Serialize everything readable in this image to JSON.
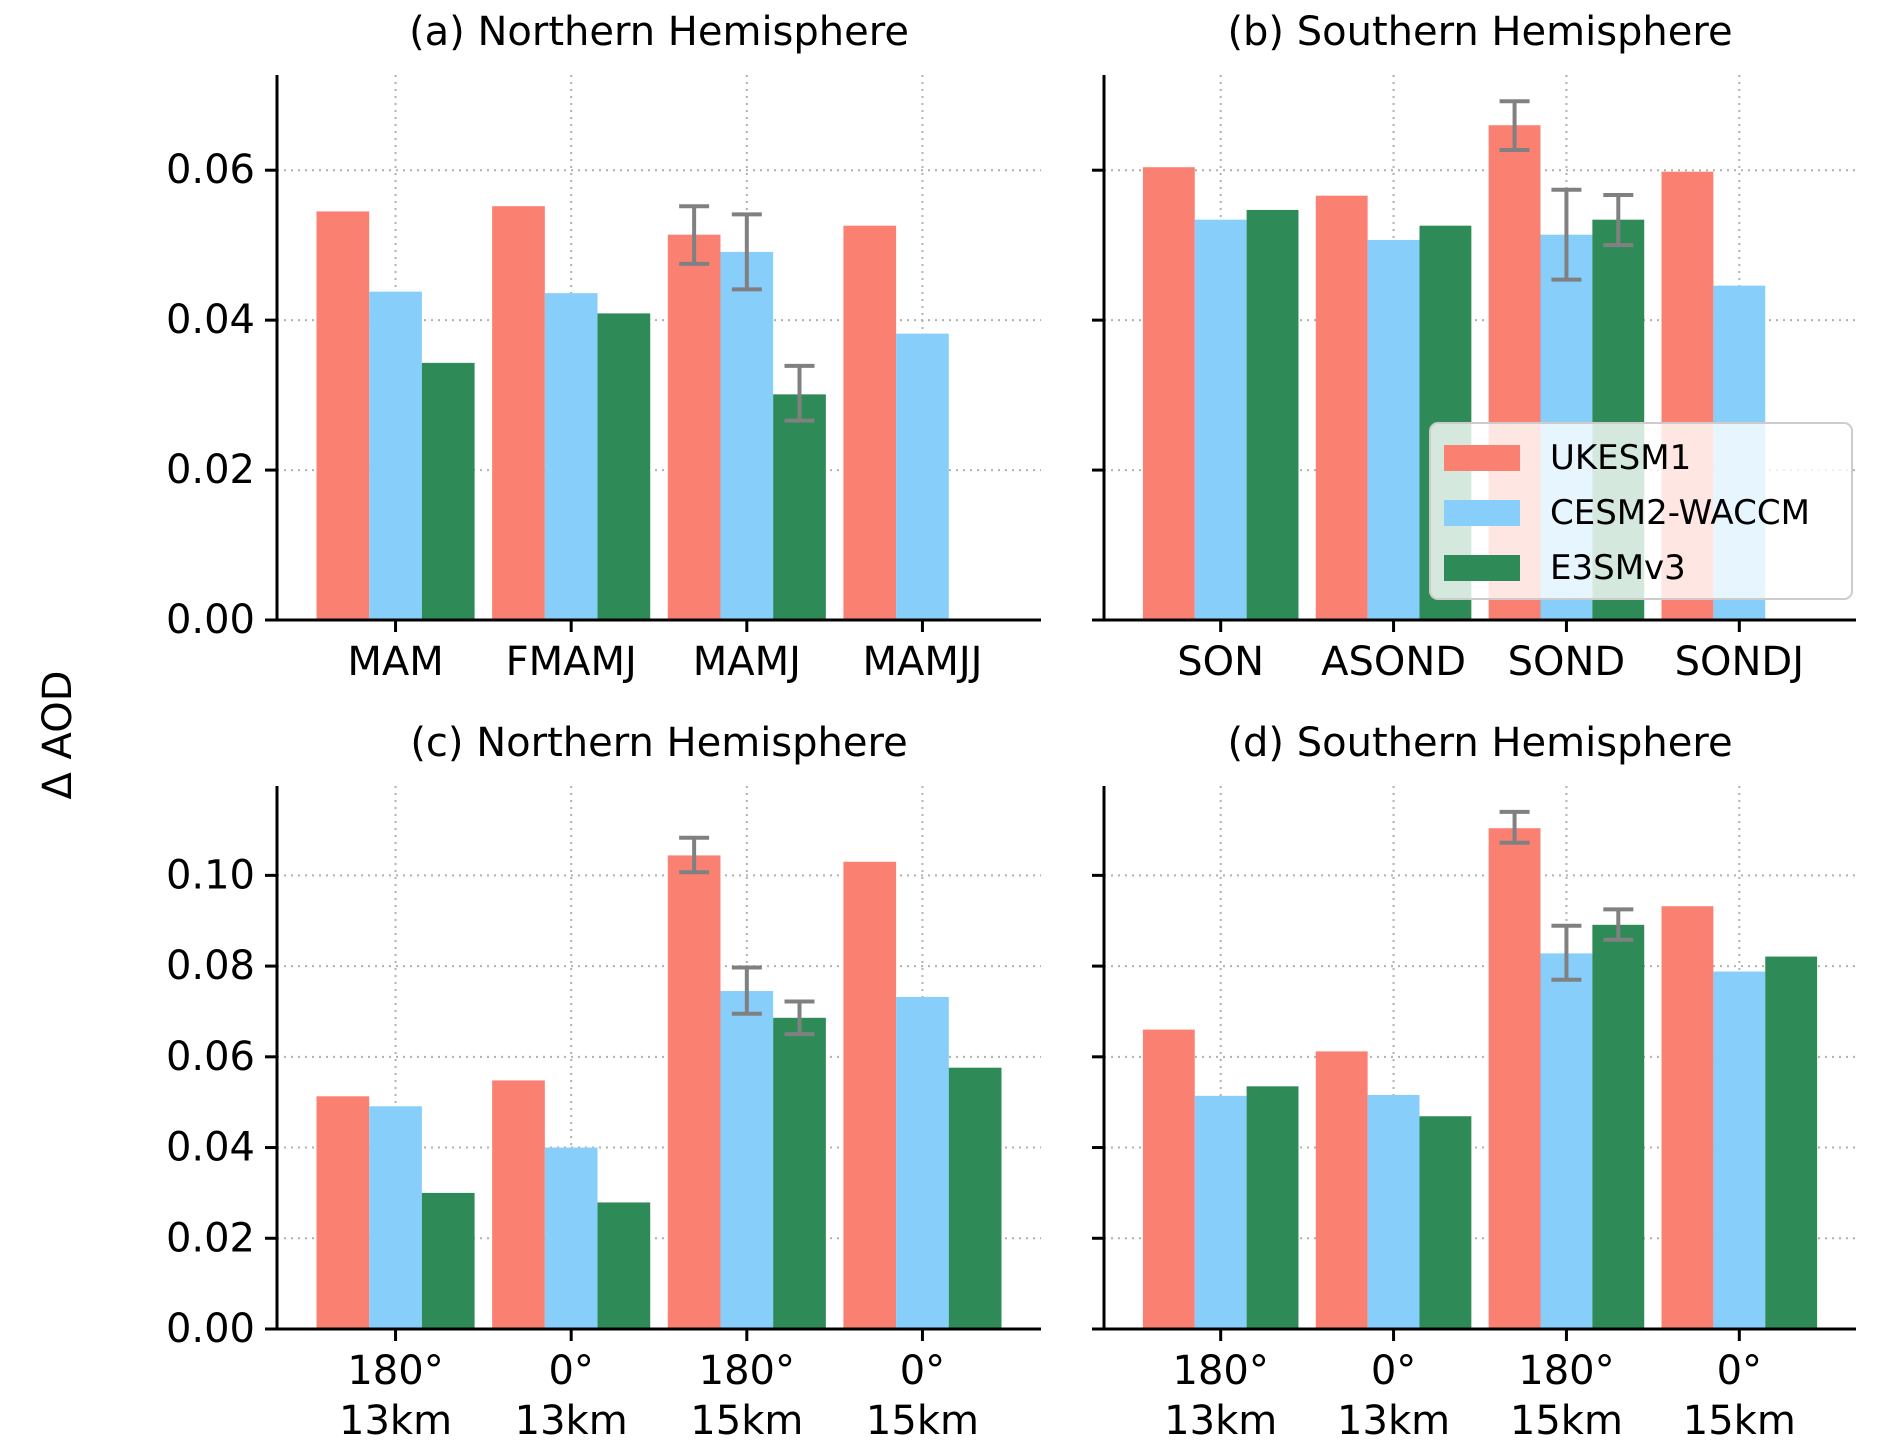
{
  "figure": {
    "ylabel": "Δ AOD"
  },
  "colors": {
    "UKESM1": "#FA8072",
    "CESM2-WACCM": "#87CEFA",
    "E3SMv3": "#2E8B57",
    "errorbar": "#808080",
    "grid": "#b0b0b0"
  },
  "legend": {
    "placement": "panel (b), lower-right",
    "entries": [
      "UKESM1",
      "CESM2-WACCM",
      "E3SMv3"
    ]
  },
  "chart_data": [
    {
      "type": "bar",
      "panel": "a",
      "title": "(a) Northern Hemisphere",
      "xlabel": "",
      "ylabel": "Δ AOD",
      "categories": [
        "MAM",
        "FMAMJ",
        "MAMJ",
        "MAMJJ"
      ],
      "category_lines": [
        [
          "MAM"
        ],
        [
          "FMAMJ"
        ],
        [
          "MAMJ"
        ],
        [
          "MAMJJ"
        ]
      ],
      "ylim": [
        0,
        0.0727
      ],
      "yticks": [
        0.0,
        0.02,
        0.04,
        0.06
      ],
      "ytick_labels": [
        "0.00",
        "0.02",
        "0.04",
        "0.06"
      ],
      "show_ytick_labels": true,
      "grid": true,
      "series": [
        {
          "name": "UKESM1",
          "values": [
            0.0545,
            0.0552,
            0.0514,
            0.0526
          ],
          "errors": [
            null,
            null,
            [
              0.0475,
              0.0552
            ],
            null
          ]
        },
        {
          "name": "CESM2-WACCM",
          "values": [
            0.0438,
            0.0436,
            0.0491,
            0.0382
          ],
          "errors": [
            null,
            null,
            [
              0.0441,
              0.0541
            ],
            null
          ]
        },
        {
          "name": "E3SMv3",
          "values": [
            0.0343,
            0.0409,
            0.0301,
            null
          ],
          "errors": [
            null,
            null,
            [
              0.0266,
              0.0339
            ],
            null
          ]
        }
      ]
    },
    {
      "type": "bar",
      "panel": "b",
      "title": "(b) Southern Hemisphere",
      "xlabel": "",
      "ylabel": "",
      "categories": [
        "SON",
        "ASOND",
        "SOND",
        "SONDJ"
      ],
      "category_lines": [
        [
          "SON"
        ],
        [
          "ASOND"
        ],
        [
          "SOND"
        ],
        [
          "SONDJ"
        ]
      ],
      "ylim": [
        0,
        0.0727
      ],
      "yticks": [
        0.0,
        0.02,
        0.04,
        0.06
      ],
      "ytick_labels": [
        "0.00",
        "0.02",
        "0.04",
        "0.06"
      ],
      "show_ytick_labels": false,
      "grid": true,
      "series": [
        {
          "name": "UKESM1",
          "values": [
            0.0604,
            0.0566,
            0.066,
            0.0598
          ],
          "errors": [
            null,
            null,
            [
              0.0627,
              0.0692
            ],
            null
          ]
        },
        {
          "name": "CESM2-WACCM",
          "values": [
            0.0534,
            0.0507,
            0.0514,
            0.0446
          ],
          "errors": [
            null,
            null,
            [
              0.0454,
              0.0574
            ],
            null
          ]
        },
        {
          "name": "E3SMv3",
          "values": [
            0.0547,
            0.0526,
            0.0534,
            null
          ],
          "errors": [
            null,
            null,
            [
              0.05,
              0.0567
            ],
            null
          ]
        }
      ]
    },
    {
      "type": "bar",
      "panel": "c",
      "title": "(c) Northern Hemisphere",
      "xlabel": "",
      "ylabel": "Δ AOD",
      "categories": [
        "180° 13km",
        "0° 13km",
        "180° 15km",
        "0° 15km"
      ],
      "category_lines": [
        [
          "180°",
          "13km"
        ],
        [
          "0°",
          "13km"
        ],
        [
          "180°",
          "15km"
        ],
        [
          "0°",
          "15km"
        ]
      ],
      "ylim": [
        0,
        0.1197
      ],
      "yticks": [
        0.0,
        0.02,
        0.04,
        0.06,
        0.08,
        0.1
      ],
      "ytick_labels": [
        "0.00",
        "0.02",
        "0.04",
        "0.06",
        "0.08",
        "0.10"
      ],
      "show_ytick_labels": true,
      "grid": true,
      "series": [
        {
          "name": "UKESM1",
          "values": [
            0.0513,
            0.0548,
            0.1044,
            0.103
          ],
          "errors": [
            null,
            null,
            [
              0.1007,
              0.1083
            ],
            null
          ]
        },
        {
          "name": "CESM2-WACCM",
          "values": [
            0.0491,
            0.04,
            0.0745,
            0.0732
          ],
          "errors": [
            null,
            null,
            [
              0.0695,
              0.0797
            ],
            null
          ]
        },
        {
          "name": "E3SMv3",
          "values": [
            0.03,
            0.0279,
            0.0686,
            0.0576
          ],
          "errors": [
            null,
            null,
            [
              0.065,
              0.0722
            ],
            null
          ]
        }
      ]
    },
    {
      "type": "bar",
      "panel": "d",
      "title": "(d) Southern Hemisphere",
      "xlabel": "",
      "ylabel": "",
      "categories": [
        "180° 13km",
        "0° 13km",
        "180° 15km",
        "0° 15km"
      ],
      "category_lines": [
        [
          "180°",
          "13km"
        ],
        [
          "0°",
          "13km"
        ],
        [
          "180°",
          "15km"
        ],
        [
          "0°",
          "15km"
        ]
      ],
      "ylim": [
        0,
        0.1197
      ],
      "yticks": [
        0.0,
        0.02,
        0.04,
        0.06,
        0.08,
        0.1
      ],
      "ytick_labels": [
        "0.00",
        "0.02",
        "0.04",
        "0.06",
        "0.08",
        "0.10"
      ],
      "show_ytick_labels": false,
      "grid": true,
      "series": [
        {
          "name": "UKESM1",
          "values": [
            0.066,
            0.0612,
            0.1104,
            0.0932
          ],
          "errors": [
            null,
            null,
            [
              0.1072,
              0.114
            ],
            null
          ]
        },
        {
          "name": "CESM2-WACCM",
          "values": [
            0.0514,
            0.0516,
            0.0828,
            0.0788
          ],
          "errors": [
            null,
            null,
            [
              0.077,
              0.0889
            ],
            null
          ]
        },
        {
          "name": "E3SMv3",
          "values": [
            0.0535,
            0.0469,
            0.0891,
            0.0821
          ],
          "errors": [
            null,
            null,
            [
              0.0858,
              0.0925
            ],
            null
          ]
        }
      ]
    }
  ]
}
